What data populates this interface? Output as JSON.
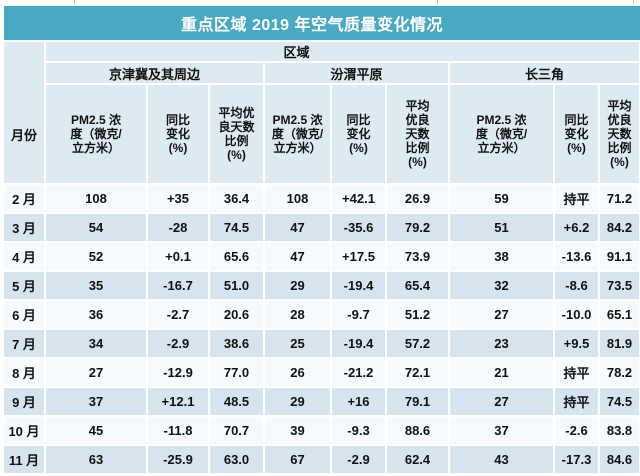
{
  "title": "重点区域 2019 年空气质量变化情况",
  "table": {
    "month_header": "月份",
    "region_header": "区域",
    "regions": [
      {
        "name": "京津冀及其周边",
        "columns": [
          "PM2.5 浓\n度（微克/\n立方米）",
          "同比\n变化\n(%)",
          "平均优\n良天数\n比例\n(%)"
        ]
      },
      {
        "name": "汾渭平原",
        "columns": [
          "PM2.5 浓\n度（微克/\n立方米）",
          "同比\n变化\n(%)",
          "平均\n优良\n天数\n比例\n(%)"
        ]
      },
      {
        "name": "长三角",
        "columns": [
          "PM2.5 浓\n度（微克/\n立方米）",
          "同比\n变化\n(%)",
          "平均\n优良\n天数\n比例\n(%)"
        ]
      }
    ],
    "rows": [
      {
        "month": "2 月",
        "values": [
          "108",
          "+35",
          "36.4",
          "108",
          "+42.1",
          "26.9",
          "59",
          "持平",
          "71.2"
        ]
      },
      {
        "month": "3 月",
        "values": [
          "54",
          "-28",
          "74.5",
          "47",
          "-35.6",
          "79.2",
          "51",
          "+6.2",
          "84.2"
        ]
      },
      {
        "month": "4 月",
        "values": [
          "52",
          "+0.1",
          "65.6",
          "47",
          "+17.5",
          "73.9",
          "38",
          "-13.6",
          "91.1"
        ]
      },
      {
        "month": "5 月",
        "values": [
          "35",
          "-16.7",
          "51.0",
          "29",
          "-19.4",
          "65.4",
          "32",
          "-8.6",
          "73.5"
        ]
      },
      {
        "month": "6 月",
        "values": [
          "36",
          "-2.7",
          "20.6",
          "28",
          "-9.7",
          "51.2",
          "27",
          "-10.0",
          "65.1"
        ]
      },
      {
        "month": "7 月",
        "values": [
          "34",
          "-2.9",
          "38.6",
          "25",
          "-19.4",
          "57.2",
          "23",
          "+9.5",
          "81.9"
        ]
      },
      {
        "month": "8 月",
        "values": [
          "27",
          "-12.9",
          "77.0",
          "26",
          "-21.2",
          "72.1",
          "21",
          "持平",
          "78.2"
        ]
      },
      {
        "month": "9 月",
        "values": [
          "37",
          "+12.1",
          "48.5",
          "29",
          "+16",
          "79.1",
          "27",
          "持平",
          "74.5"
        ]
      },
      {
        "month": "10 月",
        "values": [
          "45",
          "-11.8",
          "70.7",
          "39",
          "-9.3",
          "88.6",
          "37",
          "-2.6",
          "83.8"
        ]
      },
      {
        "month": "11 月",
        "values": [
          "63",
          "-25.9",
          "63.0",
          "67",
          "-2.9",
          "62.4",
          "43",
          "-17.3",
          "84.6"
        ]
      }
    ]
  },
  "colors": {
    "title_bar": "#49A9C3",
    "title_text": "#FFFFFF",
    "header_bg": "#DEEAF2",
    "row_light": "#F6FAFC",
    "row_blue": "#D7E4EE",
    "text": "#111111"
  }
}
